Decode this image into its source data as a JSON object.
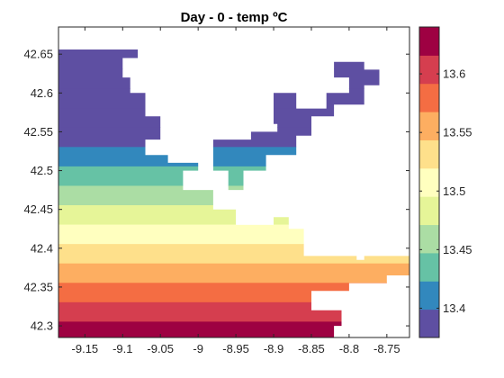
{
  "chart_data": {
    "type": "heatmap",
    "title": "Day - 0 - temp ºC",
    "xlabel": "",
    "ylabel": "",
    "xlim": [
      -9.185,
      -8.72
    ],
    "ylim": [
      42.285,
      42.685
    ],
    "x_ticks": [
      -9.15,
      -9.1,
      -9.05,
      -9,
      -8.95,
      -8.9,
      -8.85,
      -8.8,
      -8.75
    ],
    "x_tick_labels": [
      "-9.15",
      "-9.1",
      "-9.05",
      "-9",
      "-8.95",
      "-8.9",
      "-8.85",
      "-8.8",
      "-8.75"
    ],
    "y_ticks": [
      42.3,
      42.35,
      42.4,
      42.45,
      42.5,
      42.55,
      42.6,
      42.65
    ],
    "y_tick_labels": [
      "42.3",
      "42.35",
      "42.4",
      "42.45",
      "42.5",
      "42.55",
      "42.6",
      "42.65"
    ],
    "colorbar": {
      "range": [
        13.375,
        13.64
      ],
      "ticks": [
        13.4,
        13.45,
        13.5,
        13.55,
        13.6
      ],
      "tick_labels": [
        "13.4",
        "13.45",
        "13.5",
        "13.55",
        "13.6"
      ],
      "colors": [
        "#5e4fa2",
        "#3288bd",
        "#66c2a5",
        "#abdda4",
        "#e6f598",
        "#ffffbf",
        "#fee08b",
        "#fdae61",
        "#f46d43",
        "#d53e4f",
        "#9e0142"
      ]
    },
    "temperature_bands": [
      {
        "lat_min": 42.285,
        "lat_max": 42.306,
        "temp": 13.63
      },
      {
        "lat_min": 42.306,
        "lat_max": 42.331,
        "temp": 13.605
      },
      {
        "lat_min": 42.331,
        "lat_max": 42.356,
        "temp": 13.58
      },
      {
        "lat_min": 42.356,
        "lat_max": 42.381,
        "temp": 13.555
      },
      {
        "lat_min": 42.381,
        "lat_max": 42.406,
        "temp": 13.53
      },
      {
        "lat_min": 42.406,
        "lat_max": 42.431,
        "temp": 13.505
      },
      {
        "lat_min": 42.431,
        "lat_max": 42.456,
        "temp": 13.48
      },
      {
        "lat_min": 42.456,
        "lat_max": 42.481,
        "temp": 13.455
      },
      {
        "lat_min": 42.481,
        "lat_max": 42.506,
        "temp": 13.43
      },
      {
        "lat_min": 42.506,
        "lat_max": 42.531,
        "temp": 13.405
      },
      {
        "lat_min": 42.531,
        "lat_max": 42.556,
        "temp": 13.38
      },
      {
        "lat_min": 42.556,
        "lat_max": 42.581,
        "temp": 13.355
      },
      {
        "lat_min": 42.581,
        "lat_max": 42.606,
        "temp": 13.33
      },
      {
        "lat_min": 42.606,
        "lat_max": 42.631,
        "temp": 13.305
      },
      {
        "lat_min": 42.631,
        "lat_max": 42.656,
        "temp": 13.28
      }
    ],
    "data_mask_polygons": [
      [
        [
          -9.185,
          42.685
        ],
        [
          -9.03,
          42.685
        ],
        [
          -9.03,
          42.675
        ],
        [
          -9.05,
          42.675
        ],
        [
          -9.05,
          42.665
        ],
        [
          -9.08,
          42.665
        ],
        [
          -9.08,
          42.645
        ],
        [
          -9.1,
          42.645
        ],
        [
          -9.1,
          42.62
        ],
        [
          -9.09,
          42.62
        ],
        [
          -9.09,
          42.6
        ],
        [
          -9.07,
          42.6
        ],
        [
          -9.07,
          42.57
        ],
        [
          -9.05,
          42.57
        ],
        [
          -9.05,
          42.54
        ],
        [
          -9.07,
          42.54
        ],
        [
          -9.07,
          42.52
        ],
        [
          -9.04,
          42.52
        ],
        [
          -9.04,
          42.51
        ],
        [
          -9.0,
          42.51
        ],
        [
          -9.0,
          42.5
        ],
        [
          -9.02,
          42.5
        ],
        [
          -9.02,
          42.475
        ],
        [
          -8.98,
          42.475
        ],
        [
          -8.98,
          42.45
        ],
        [
          -8.95,
          42.45
        ],
        [
          -8.95,
          42.43
        ],
        [
          -8.9,
          42.43
        ],
        [
          -8.9,
          42.44
        ],
        [
          -8.88,
          42.44
        ],
        [
          -8.88,
          42.425
        ],
        [
          -8.86,
          42.425
        ],
        [
          -8.86,
          42.39
        ],
        [
          -8.79,
          42.39
        ],
        [
          -8.79,
          42.385
        ],
        [
          -8.78,
          42.385
        ],
        [
          -8.78,
          42.39
        ],
        [
          -8.73,
          42.39
        ],
        [
          -8.72,
          42.39
        ],
        [
          -8.72,
          42.365
        ],
        [
          -8.75,
          42.365
        ],
        [
          -8.75,
          42.355
        ],
        [
          -8.8,
          42.355
        ],
        [
          -8.8,
          42.345
        ],
        [
          -8.85,
          42.345
        ],
        [
          -8.85,
          42.32
        ],
        [
          -8.81,
          42.32
        ],
        [
          -8.81,
          42.3
        ],
        [
          -8.82,
          42.3
        ],
        [
          -8.82,
          42.285
        ],
        [
          -9.185,
          42.285
        ]
      ],
      [
        [
          -8.98,
          42.54
        ],
        [
          -8.93,
          42.54
        ],
        [
          -8.93,
          42.55
        ],
        [
          -8.895,
          42.55
        ],
        [
          -8.895,
          42.56
        ],
        [
          -8.9,
          42.56
        ],
        [
          -8.9,
          42.6
        ],
        [
          -8.87,
          42.6
        ],
        [
          -8.87,
          42.58
        ],
        [
          -8.83,
          42.58
        ],
        [
          -8.83,
          42.6
        ],
        [
          -8.8,
          42.6
        ],
        [
          -8.8,
          42.62
        ],
        [
          -8.82,
          42.62
        ],
        [
          -8.82,
          42.64
        ],
        [
          -8.78,
          42.64
        ],
        [
          -8.78,
          42.63
        ],
        [
          -8.76,
          42.63
        ],
        [
          -8.76,
          42.61
        ],
        [
          -8.78,
          42.61
        ],
        [
          -8.78,
          42.585
        ],
        [
          -8.82,
          42.585
        ],
        [
          -8.82,
          42.57
        ],
        [
          -8.85,
          42.57
        ],
        [
          -8.85,
          42.545
        ],
        [
          -8.87,
          42.545
        ],
        [
          -8.87,
          42.52
        ],
        [
          -8.91,
          42.52
        ],
        [
          -8.91,
          42.5
        ],
        [
          -8.94,
          42.5
        ],
        [
          -8.94,
          42.475
        ],
        [
          -8.96,
          42.475
        ],
        [
          -8.96,
          42.5
        ],
        [
          -8.98,
          42.5
        ]
      ],
      [
        [
          -8.97,
          42.4
        ],
        [
          -8.92,
          42.4
        ],
        [
          -8.92,
          42.38
        ],
        [
          -8.9,
          42.38
        ],
        [
          -8.9,
          42.34
        ],
        [
          -8.93,
          42.34
        ],
        [
          -8.93,
          42.355
        ],
        [
          -8.96,
          42.355
        ],
        [
          -8.96,
          42.37
        ],
        [
          -8.97,
          42.37
        ]
      ]
    ]
  }
}
